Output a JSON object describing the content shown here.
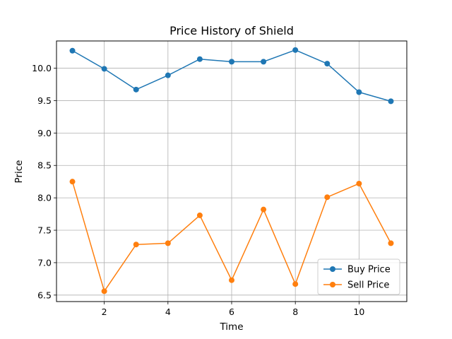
{
  "chart_data": {
    "type": "line",
    "title": "Price History of Shield",
    "xlabel": "Time",
    "ylabel": "Price",
    "x": [
      1,
      2,
      3,
      4,
      5,
      6,
      7,
      8,
      9,
      10,
      11
    ],
    "xlim": [
      0.5,
      11.5
    ],
    "ylim": [
      6.4,
      10.42
    ],
    "xticks": [
      2,
      4,
      6,
      8,
      10
    ],
    "yticks": [
      6.5,
      7.0,
      7.5,
      8.0,
      8.5,
      9.0,
      9.5,
      10.0
    ],
    "grid": true,
    "legend_position": "lower-right",
    "series": [
      {
        "name": "Buy Price",
        "color": "#1f77b4",
        "marker": "circle",
        "values": [
          10.27,
          9.99,
          9.67,
          9.89,
          10.14,
          10.1,
          10.1,
          10.28,
          10.07,
          9.63,
          9.49
        ]
      },
      {
        "name": "Sell Price",
        "color": "#ff7f0e",
        "marker": "circle",
        "values": [
          8.25,
          6.56,
          7.28,
          7.3,
          7.73,
          6.73,
          7.82,
          6.67,
          8.01,
          8.22,
          7.3
        ]
      }
    ]
  }
}
